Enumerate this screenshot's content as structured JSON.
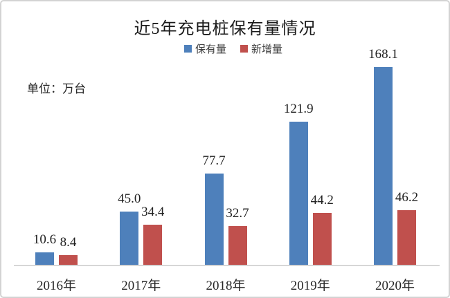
{
  "window": {
    "background_color": "#ffffff",
    "border_color": "#d3d3d3"
  },
  "chart_data": {
    "type": "bar",
    "title": "近5年充电桩保有量情况",
    "unit_label": "单位：万台",
    "categories": [
      "2016年",
      "2017年",
      "2018年",
      "2019年",
      "2020年"
    ],
    "series": [
      {
        "name": "保有量",
        "color": "#4e80bb",
        "values": [
          10.6,
          45.0,
          77.7,
          121.9,
          168.1
        ]
      },
      {
        "name": "新增量",
        "color": "#c0504d",
        "values": [
          8.4,
          34.4,
          32.7,
          44.2,
          46.2
        ]
      }
    ],
    "value_labels": {
      "series_0": [
        "10.6",
        "45.0",
        "77.7",
        "121.9",
        "168.1"
      ],
      "series_1": [
        "8.4",
        "34.4",
        "32.7",
        "44.2",
        "46.2"
      ]
    },
    "ylim": [
      0,
      180
    ],
    "grid": false,
    "legend_position": "top-center",
    "axis_line_color": "#d6d6d6",
    "text_color": "#262626"
  }
}
